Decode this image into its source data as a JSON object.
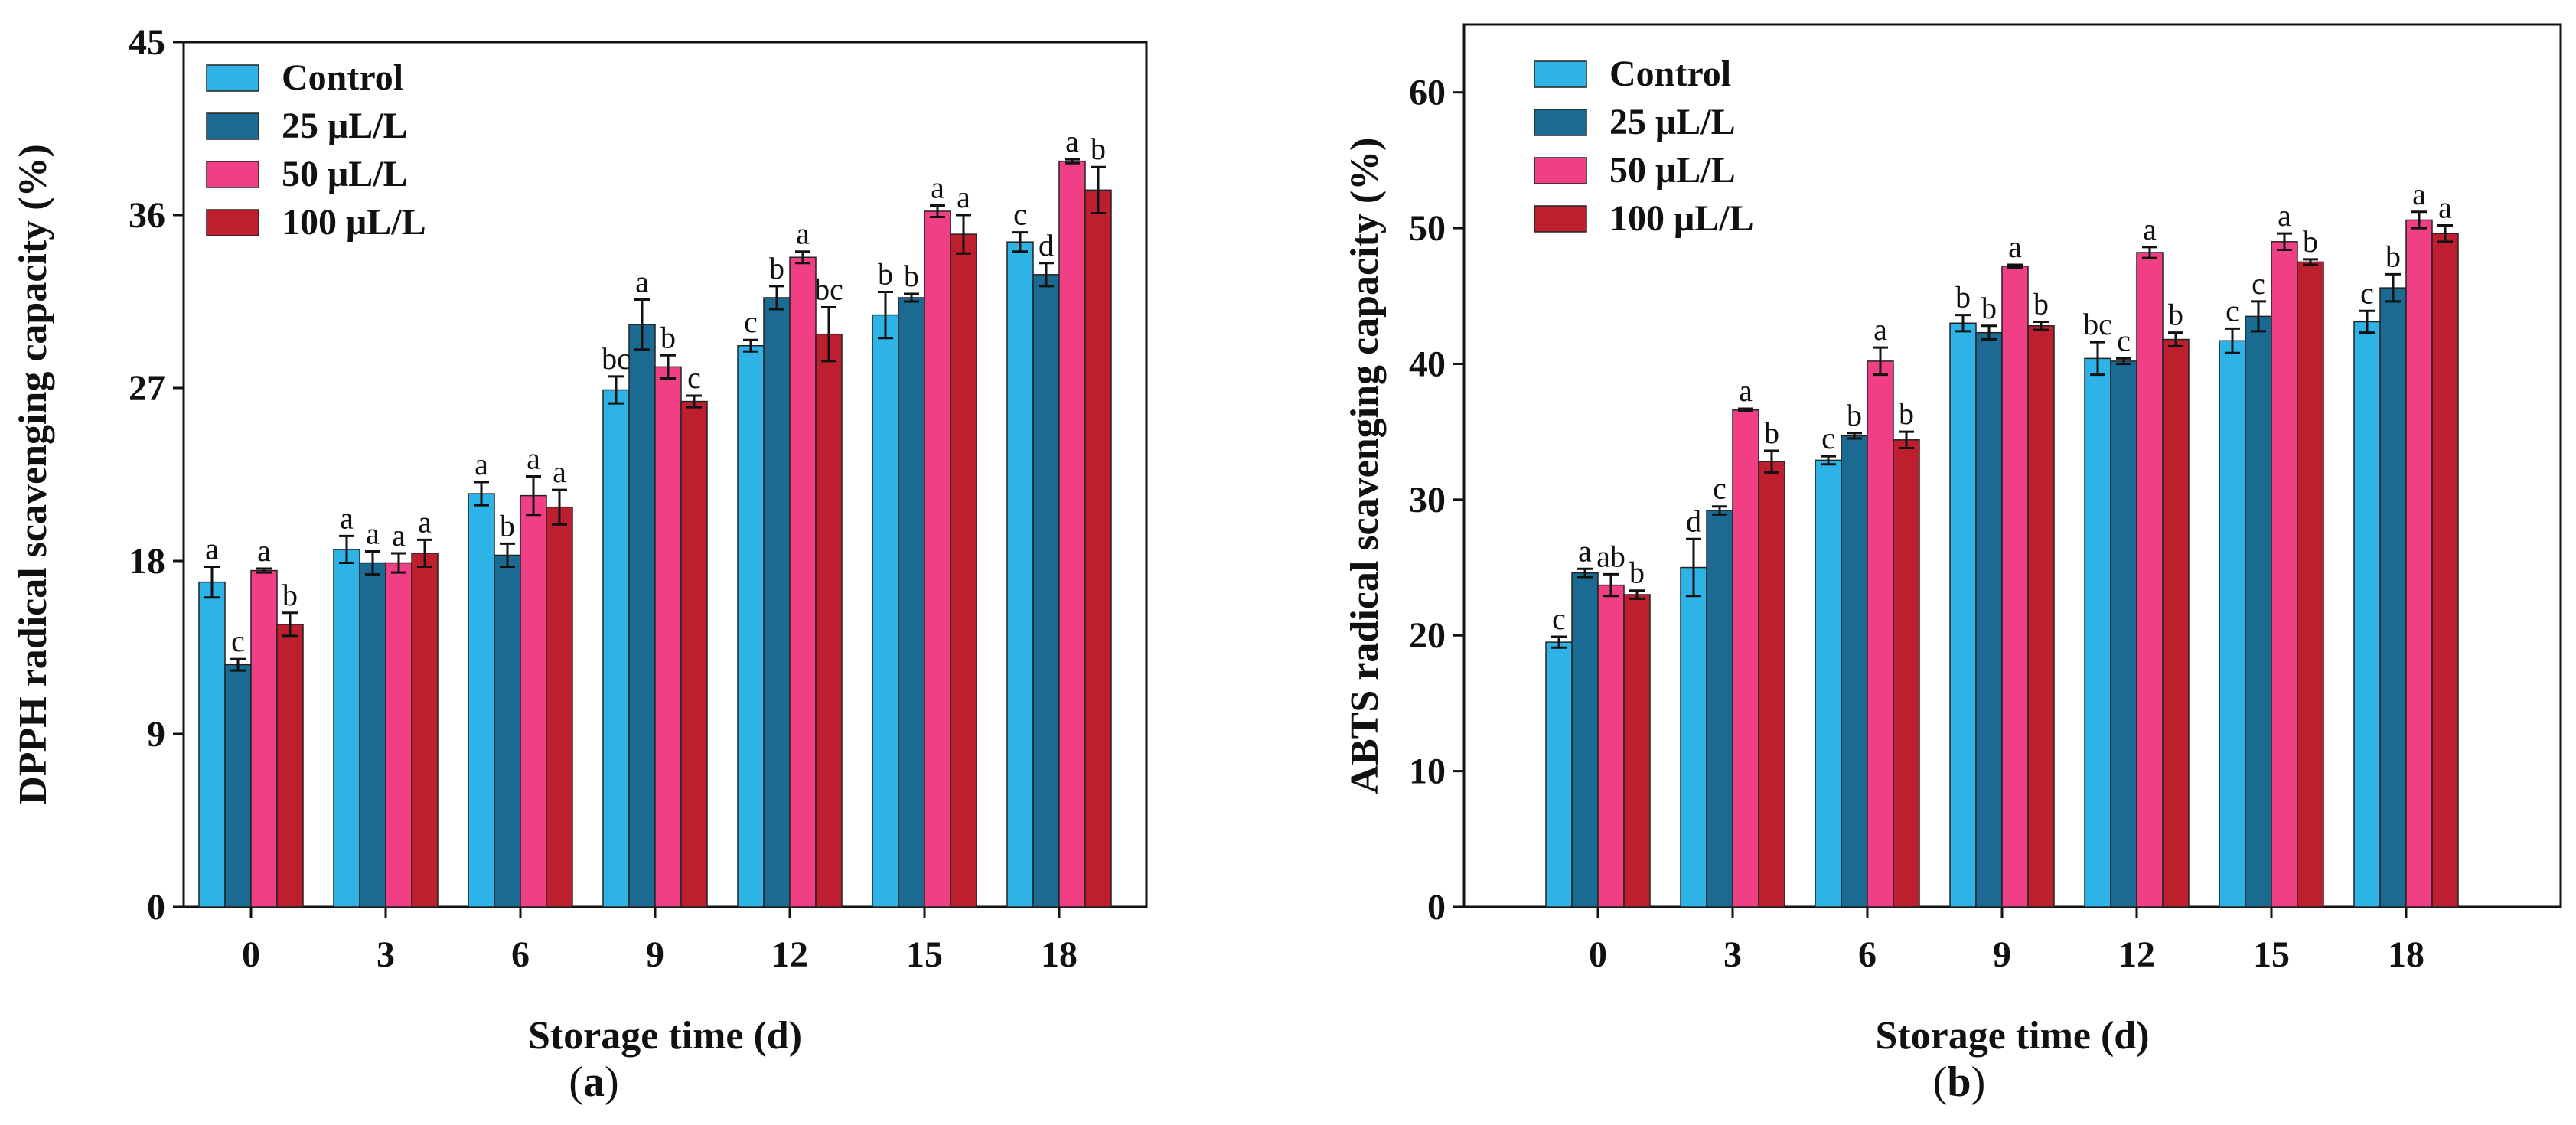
{
  "figure": {
    "panels": [
      {
        "caption_open": "(",
        "caption_letter": "a",
        "caption_close": ")"
      },
      {
        "caption_open": "(",
        "caption_letter": "b",
        "caption_close": ")"
      }
    ]
  },
  "colors": {
    "Control": "#2EB3E6",
    "25 μL/L": "#1A6A91",
    "50 μL/L": "#F03F85",
    "100 μL/L": "#BE1F2F"
  },
  "chart_data": [
    {
      "type": "bar",
      "title": "",
      "xlabel": "Storage time (d)",
      "ylabel": "DPPH radical scavenging capacity (%)",
      "ylim": [
        0,
        45
      ],
      "yticks": [
        0,
        9,
        18,
        27,
        36,
        45
      ],
      "categories": [
        "0",
        "3",
        "6",
        "9",
        "12",
        "15",
        "18"
      ],
      "legend_position": "top-left",
      "series": [
        {
          "name": "Control",
          "values": [
            16.9,
            18.6,
            21.5,
            26.9,
            29.2,
            30.8,
            34.6
          ],
          "errors": [
            0.8,
            0.7,
            0.6,
            0.7,
            0.3,
            1.2,
            0.5
          ],
          "labels": [
            "a",
            "a",
            "a",
            "bc",
            "c",
            "b",
            "c"
          ]
        },
        {
          "name": "25 μL/L",
          "values": [
            12.6,
            17.9,
            18.3,
            30.3,
            31.7,
            31.7,
            32.9
          ],
          "errors": [
            0.3,
            0.6,
            0.6,
            1.3,
            0.6,
            0.2,
            0.6
          ],
          "labels": [
            "c",
            "a",
            "b",
            "a",
            "b",
            "b",
            "d"
          ]
        },
        {
          "name": "50 μL/L",
          "values": [
            17.5,
            17.9,
            21.4,
            28.1,
            33.8,
            36.2,
            38.8
          ],
          "errors": [
            0.1,
            0.5,
            1.0,
            0.6,
            0.3,
            0.3,
            0.1
          ],
          "labels": [
            "a",
            "a",
            "a",
            "b",
            "a",
            "a",
            "a"
          ]
        },
        {
          "name": "100 μL/L",
          "values": [
            14.7,
            18.4,
            20.8,
            26.3,
            29.8,
            35.0,
            37.3
          ],
          "errors": [
            0.6,
            0.7,
            0.9,
            0.3,
            1.4,
            1.0,
            1.2
          ],
          "labels": [
            "b",
            "a",
            "a",
            "c",
            "bc",
            "a",
            "b"
          ]
        }
      ]
    },
    {
      "type": "bar",
      "title": "",
      "xlabel": "Storage time (d)",
      "ylabel": "ABTS radical scavenging capacity (%)",
      "ylim": [
        0,
        65
      ],
      "yticks": [
        0,
        10,
        20,
        30,
        40,
        50,
        60
      ],
      "categories": [
        "0",
        "3",
        "6",
        "9",
        "12",
        "15",
        "18"
      ],
      "legend_position": "top-left",
      "series": [
        {
          "name": "Control",
          "values": [
            19.5,
            25.0,
            32.9,
            43.0,
            40.4,
            41.7,
            43.1
          ],
          "errors": [
            0.4,
            2.1,
            0.3,
            0.6,
            1.2,
            0.9,
            0.8
          ],
          "labels": [
            "c",
            "d",
            "c",
            "b",
            "bc",
            "c",
            "c"
          ]
        },
        {
          "name": "25 μL/L",
          "values": [
            24.6,
            29.2,
            34.7,
            42.3,
            40.2,
            43.5,
            45.6
          ],
          "errors": [
            0.3,
            0.3,
            0.2,
            0.5,
            0.2,
            1.1,
            1.0
          ],
          "labels": [
            "a",
            "c",
            "b",
            "b",
            "c",
            "c",
            "b"
          ]
        },
        {
          "name": "50 μL/L",
          "values": [
            23.7,
            36.6,
            40.2,
            47.2,
            48.2,
            49.0,
            50.6
          ],
          "errors": [
            0.8,
            0.1,
            1.0,
            0.1,
            0.4,
            0.6,
            0.6
          ],
          "labels": [
            "ab",
            "a",
            "a",
            "a",
            "a",
            "a",
            "a"
          ]
        },
        {
          "name": "100 μL/L",
          "values": [
            23.0,
            32.8,
            34.4,
            42.8,
            41.8,
            47.5,
            49.6
          ],
          "errors": [
            0.3,
            0.8,
            0.6,
            0.3,
            0.5,
            0.2,
            0.6
          ],
          "labels": [
            "b",
            "b",
            "b",
            "b",
            "b",
            "b",
            "a"
          ]
        }
      ]
    }
  ]
}
